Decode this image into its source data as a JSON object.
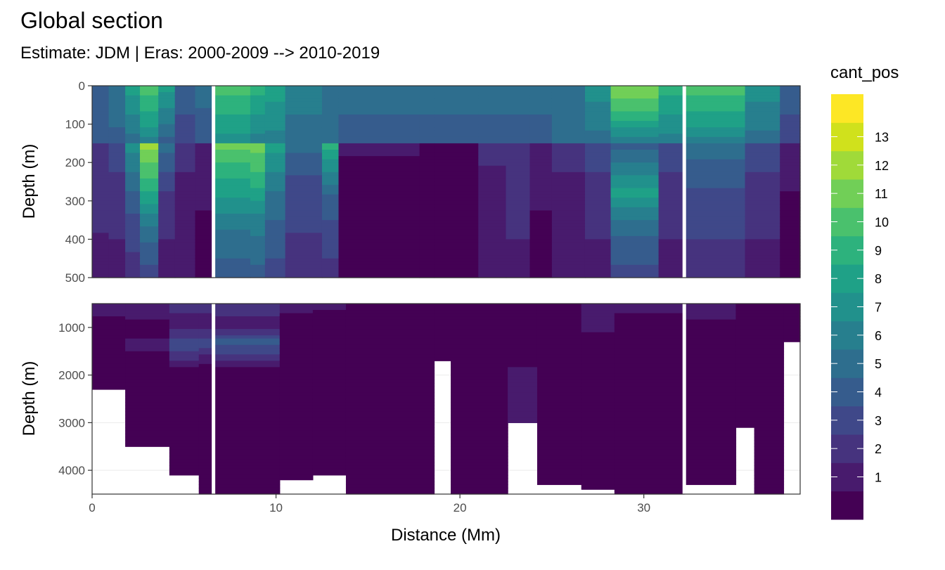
{
  "chart_data": {
    "type": "heatmap",
    "title": "Global section",
    "subtitle": "Estimate: JDM  | Eras: 2000-2009 --> 2010-2019",
    "xlabel": "Distance (Mm)",
    "ylabel": "Depth (m)",
    "x_ticks": [
      0,
      10,
      20,
      30
    ],
    "xlim": [
      0,
      38.5
    ],
    "panels": [
      {
        "name": "upper",
        "ylim": [
          0,
          500
        ],
        "y_reversed": true,
        "y_ticks": [
          0,
          100,
          200,
          300,
          400,
          500
        ],
        "y_tick_labels": [
          "0",
          "100",
          "200",
          "300",
          "400",
          "500"
        ],
        "gaps_x": [
          6.6,
          32.2
        ]
      },
      {
        "name": "lower",
        "ylim": [
          500,
          4500
        ],
        "y_reversed": true,
        "y_ticks": [
          1000,
          2000,
          3000,
          4000
        ],
        "y_tick_labels": [
          "1000",
          "2000",
          "3000",
          "4000"
        ],
        "gaps_x": [
          6.6,
          32.2
        ]
      }
    ],
    "legend": {
      "title": "cant_pos",
      "position": "right",
      "levels": [
        "1",
        "2",
        "3",
        "4",
        "5",
        "6",
        "7",
        "8",
        "9",
        "10",
        "11",
        "12",
        "13"
      ],
      "colors": [
        "#440154",
        "#481b6d",
        "#46337e",
        "#3f4889",
        "#365c8d",
        "#2e6e8e",
        "#277f8e",
        "#21918c",
        "#1fa187",
        "#2db27d",
        "#4ac16d",
        "#71cf57",
        "#a0da39",
        "#d0e11c",
        "#fde725"
      ]
    },
    "upper_columns": [
      {
        "x": [
          0.0,
          0.9
        ],
        "profile": [
          [
            0,
            5
          ],
          [
            150,
            5
          ],
          [
            150,
            3
          ],
          [
            260,
            3
          ],
          [
            500,
            2
          ]
        ]
      },
      {
        "x": [
          0.9,
          1.8
        ],
        "profile": [
          [
            0,
            6
          ],
          [
            70,
            6
          ],
          [
            150,
            5
          ],
          [
            150,
            4
          ],
          [
            300,
            3
          ],
          [
            500,
            2
          ]
        ]
      },
      {
        "x": [
          1.8,
          2.6
        ],
        "profile": [
          [
            0,
            9
          ],
          [
            100,
            7
          ],
          [
            150,
            6
          ],
          [
            150,
            8
          ],
          [
            250,
            6
          ],
          [
            360,
            4
          ],
          [
            500,
            3
          ]
        ]
      },
      {
        "x": [
          2.6,
          3.6
        ],
        "profile": [
          [
            0,
            11
          ],
          [
            90,
            9
          ],
          [
            150,
            7
          ],
          [
            150,
            13
          ],
          [
            220,
            11
          ],
          [
            290,
            9
          ],
          [
            380,
            6
          ],
          [
            500,
            4
          ]
        ]
      },
      {
        "x": [
          3.6,
          4.5
        ],
        "profile": [
          [
            0,
            9
          ],
          [
            80,
            7
          ],
          [
            150,
            5
          ],
          [
            150,
            6
          ],
          [
            300,
            3
          ],
          [
            500,
            2
          ]
        ]
      },
      {
        "x": [
          4.5,
          5.6
        ],
        "profile": [
          [
            0,
            5
          ],
          [
            150,
            4
          ],
          [
            150,
            3
          ],
          [
            300,
            2
          ],
          [
            500,
            2
          ]
        ]
      },
      {
        "x": [
          5.6,
          6.6
        ],
        "profile": [
          [
            0,
            6
          ],
          [
            120,
            5
          ],
          [
            150,
            5
          ],
          [
            150,
            2
          ],
          [
            500,
            1
          ]
        ]
      },
      {
        "x": [
          6.6,
          8.6
        ],
        "profile": [
          [
            0,
            11
          ],
          [
            100,
            9
          ],
          [
            150,
            8
          ],
          [
            150,
            12
          ],
          [
            220,
            10
          ],
          [
            310,
            8
          ],
          [
            400,
            6
          ],
          [
            500,
            5
          ]
        ]
      },
      {
        "x": [
          8.6,
          9.4
        ],
        "profile": [
          [
            0,
            10
          ],
          [
            100,
            8
          ],
          [
            150,
            7
          ],
          [
            150,
            12
          ],
          [
            250,
            10
          ],
          [
            350,
            7
          ],
          [
            500,
            5
          ]
        ]
      },
      {
        "x": [
          9.4,
          10.5
        ],
        "profile": [
          [
            0,
            9
          ],
          [
            150,
            7
          ],
          [
            150,
            9
          ],
          [
            300,
            6
          ],
          [
            500,
            4
          ]
        ]
      },
      {
        "x": [
          10.5,
          12.5
        ],
        "profile": [
          [
            0,
            7
          ],
          [
            150,
            6
          ],
          [
            150,
            6
          ],
          [
            260,
            4
          ],
          [
            500,
            3
          ]
        ]
      },
      {
        "x": [
          12.5,
          13.4
        ],
        "profile": [
          [
            0,
            6
          ],
          [
            150,
            6
          ],
          [
            150,
            10
          ],
          [
            300,
            5
          ],
          [
            500,
            3
          ]
        ]
      },
      {
        "x": [
          13.4,
          17.8
        ],
        "profile": [
          [
            0,
            6
          ],
          [
            150,
            5
          ],
          [
            150,
            2
          ],
          [
            220,
            1
          ],
          [
            500,
            1
          ]
        ]
      },
      {
        "x": [
          17.8,
          18.6
        ],
        "profile": [
          [
            0,
            6
          ],
          [
            150,
            5
          ],
          [
            150,
            1
          ],
          [
            500,
            1
          ]
        ]
      },
      {
        "x": [
          18.6,
          21.0
        ],
        "profile": [
          [
            0,
            6
          ],
          [
            150,
            5
          ],
          [
            150,
            1
          ],
          [
            500,
            1
          ]
        ]
      },
      {
        "x": [
          21.0,
          22.5
        ],
        "profile": [
          [
            0,
            6
          ],
          [
            150,
            5
          ],
          [
            150,
            3
          ],
          [
            260,
            2
          ],
          [
            500,
            2
          ]
        ]
      },
      {
        "x": [
          22.5,
          23.8
        ],
        "profile": [
          [
            0,
            6
          ],
          [
            150,
            5
          ],
          [
            150,
            3
          ],
          [
            300,
            3
          ],
          [
            500,
            2
          ]
        ]
      },
      {
        "x": [
          23.8,
          25.0
        ],
        "profile": [
          [
            0,
            6
          ],
          [
            150,
            5
          ],
          [
            150,
            2
          ],
          [
            500,
            1
          ]
        ]
      },
      {
        "x": [
          25.0,
          26.8
        ],
        "profile": [
          [
            0,
            6
          ],
          [
            150,
            6
          ],
          [
            150,
            3
          ],
          [
            300,
            2
          ],
          [
            500,
            2
          ]
        ]
      },
      {
        "x": [
          26.8,
          28.2
        ],
        "profile": [
          [
            0,
            8
          ],
          [
            150,
            6
          ],
          [
            150,
            4
          ],
          [
            300,
            3
          ],
          [
            500,
            2
          ]
        ]
      },
      {
        "x": [
          28.2,
          30.8
        ],
        "profile": [
          [
            0,
            12
          ],
          [
            60,
            11
          ],
          [
            120,
            8
          ],
          [
            150,
            7
          ],
          [
            150,
            5
          ],
          [
            280,
            9
          ],
          [
            360,
            6
          ],
          [
            500,
            4
          ]
        ]
      },
      {
        "x": [
          30.8,
          32.2
        ],
        "profile": [
          [
            0,
            10
          ],
          [
            150,
            7
          ],
          [
            150,
            4
          ],
          [
            300,
            3
          ],
          [
            500,
            2
          ]
        ]
      },
      {
        "x": [
          32.2,
          35.5
        ],
        "profile": [
          [
            0,
            11
          ],
          [
            90,
            9
          ],
          [
            150,
            7
          ],
          [
            150,
            6
          ],
          [
            300,
            4
          ],
          [
            500,
            3
          ]
        ]
      },
      {
        "x": [
          35.5,
          37.4
        ],
        "profile": [
          [
            0,
            8
          ],
          [
            150,
            6
          ],
          [
            150,
            4
          ],
          [
            300,
            3
          ],
          [
            500,
            2
          ]
        ]
      },
      {
        "x": [
          37.4,
          38.5
        ],
        "profile": [
          [
            0,
            5
          ],
          [
            150,
            4
          ],
          [
            150,
            2
          ],
          [
            400,
            1
          ],
          [
            500,
            1
          ]
        ]
      }
    ],
    "lower_columns": [
      {
        "x": [
          0.0,
          1.8
        ],
        "profile": [
          [
            500,
            2
          ],
          [
            1000,
            1
          ],
          [
            4500,
            1
          ]
        ],
        "bottom": 2300
      },
      {
        "x": [
          1.8,
          4.2
        ],
        "profile": [
          [
            500,
            2
          ],
          [
            1100,
            1
          ],
          [
            1400,
            2
          ],
          [
            1650,
            1
          ],
          [
            4500,
            1
          ]
        ],
        "bottom": 3500
      },
      {
        "x": [
          4.2,
          5.8
        ],
        "profile": [
          [
            500,
            3
          ],
          [
            900,
            2
          ],
          [
            1350,
            4
          ],
          [
            1650,
            3
          ],
          [
            1900,
            1
          ],
          [
            4500,
            1
          ]
        ],
        "bottom": 4100
      },
      {
        "x": [
          5.8,
          6.6
        ],
        "profile": [
          [
            500,
            3
          ],
          [
            900,
            2
          ],
          [
            1350,
            4
          ],
          [
            1650,
            2
          ],
          [
            1900,
            1
          ],
          [
            4500,
            1
          ]
        ],
        "bottom": 4500
      },
      {
        "x": [
          6.6,
          10.2
        ],
        "profile": [
          [
            500,
            3
          ],
          [
            1000,
            2
          ],
          [
            1300,
            5
          ],
          [
            1650,
            3
          ],
          [
            1900,
            1
          ],
          [
            4500,
            1
          ]
        ],
        "bottom": 4500
      },
      {
        "x": [
          10.2,
          12.0
        ],
        "profile": [
          [
            500,
            2
          ],
          [
            900,
            1
          ],
          [
            4500,
            1
          ]
        ],
        "bottom": 4200
      },
      {
        "x": [
          12.0,
          13.8
        ],
        "profile": [
          [
            500,
            2
          ],
          [
            800,
            1
          ],
          [
            4500,
            1
          ]
        ],
        "bottom": 4100
      },
      {
        "x": [
          13.8,
          18.6
        ],
        "profile": [
          [
            500,
            1
          ],
          [
            4500,
            1
          ]
        ],
        "bottom": 4500
      },
      {
        "x": [
          18.6,
          19.5
        ],
        "profile": [
          [
            500,
            1
          ],
          [
            4500,
            1
          ]
        ],
        "bottom": 1700
      },
      {
        "x": [
          19.5,
          22.6
        ],
        "profile": [
          [
            500,
            1
          ],
          [
            4500,
            1
          ]
        ],
        "bottom": 4500
      },
      {
        "x": [
          22.6,
          24.2
        ],
        "profile": [
          [
            500,
            1
          ],
          [
            3200,
            2
          ],
          [
            4500,
            2
          ]
        ],
        "bottom": 3000
      },
      {
        "x": [
          24.2,
          26.6
        ],
        "profile": [
          [
            500,
            1
          ],
          [
            4500,
            1
          ]
        ],
        "bottom": 4300
      },
      {
        "x": [
          26.6,
          28.4
        ],
        "profile": [
          [
            500,
            2
          ],
          [
            900,
            2
          ],
          [
            1300,
            1
          ],
          [
            4500,
            1
          ]
        ],
        "bottom": 4400
      },
      {
        "x": [
          28.4,
          32.2
        ],
        "profile": [
          [
            500,
            2
          ],
          [
            950,
            1
          ],
          [
            4500,
            1
          ]
        ],
        "bottom": 4500
      },
      {
        "x": [
          32.2,
          35.0
        ],
        "profile": [
          [
            500,
            2
          ],
          [
            1100,
            1
          ],
          [
            4500,
            1
          ]
        ],
        "bottom": 4300
      },
      {
        "x": [
          35.0,
          36.0
        ],
        "profile": [
          [
            500,
            1
          ],
          [
            4500,
            1
          ]
        ],
        "bottom": 3100
      },
      {
        "x": [
          36.0,
          37.6
        ],
        "profile": [
          [
            500,
            1
          ],
          [
            4500,
            1
          ]
        ],
        "bottom": 4500
      },
      {
        "x": [
          37.6,
          38.5
        ],
        "profile": [
          [
            500,
            1
          ],
          [
            4500,
            1
          ]
        ],
        "bottom": 1300
      }
    ]
  }
}
